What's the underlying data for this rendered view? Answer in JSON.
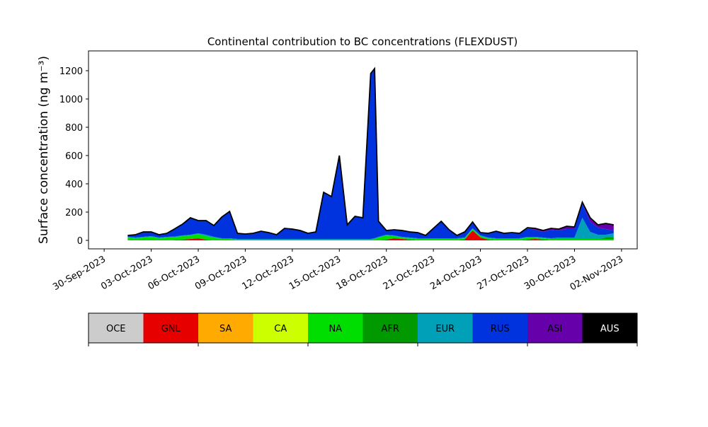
{
  "chart_data": [
    {
      "type": "area",
      "stacked": true,
      "title": "Continental contribution to BC concentrations (FLEXDUST)",
      "ylabel": "Surface concentration (ng m⁻³)",
      "xlabel": "",
      "xlim": [
        "2023-09-29",
        "2023-11-03"
      ],
      "ylim": [
        -60,
        1340
      ],
      "yticks": [
        0,
        200,
        400,
        600,
        800,
        1000,
        1200
      ],
      "xticks": [
        "2023-09-30",
        "2023-10-03",
        "2023-10-06",
        "2023-10-09",
        "2023-10-12",
        "2023-10-15",
        "2023-10-18",
        "2023-10-21",
        "2023-10-24",
        "2023-10-27",
        "2023-10-30",
        "2023-11-02"
      ],
      "xtick_labels": [
        "30-Sep-2023",
        "03-Oct-2023",
        "06-Oct-2023",
        "09-Oct-2023",
        "12-Oct-2023",
        "15-Oct-2023",
        "18-Oct-2023",
        "21-Oct-2023",
        "24-Oct-2023",
        "27-Oct-2023",
        "30-Oct-2023",
        "02-Nov-2023"
      ],
      "grid": false,
      "x": [
        "2023-10-01 12:00",
        "2023-10-02 00:00",
        "2023-10-02 12:00",
        "2023-10-03 00:00",
        "2023-10-03 12:00",
        "2023-10-04 00:00",
        "2023-10-04 12:00",
        "2023-10-05 00:00",
        "2023-10-05 12:00",
        "2023-10-06 00:00",
        "2023-10-06 12:00",
        "2023-10-07 00:00",
        "2023-10-07 12:00",
        "2023-10-08 00:00",
        "2023-10-08 12:00",
        "2023-10-09 00:00",
        "2023-10-09 12:00",
        "2023-10-10 00:00",
        "2023-10-10 12:00",
        "2023-10-11 00:00",
        "2023-10-11 12:00",
        "2023-10-12 00:00",
        "2023-10-12 12:00",
        "2023-10-13 00:00",
        "2023-10-13 12:00",
        "2023-10-14 00:00",
        "2023-10-14 12:00",
        "2023-10-15 00:00",
        "2023-10-15 12:00",
        "2023-10-16 00:00",
        "2023-10-16 12:00",
        "2023-10-17 00:00",
        "2023-10-17 06:00",
        "2023-10-17 12:00",
        "2023-10-18 00:00",
        "2023-10-18 12:00",
        "2023-10-19 00:00",
        "2023-10-19 12:00",
        "2023-10-20 00:00",
        "2023-10-20 12:00",
        "2023-10-21 00:00",
        "2023-10-21 12:00",
        "2023-10-22 00:00",
        "2023-10-22 12:00",
        "2023-10-23 00:00",
        "2023-10-23 12:00",
        "2023-10-24 00:00",
        "2023-10-24 12:00",
        "2023-10-25 00:00",
        "2023-10-25 12:00",
        "2023-10-26 00:00",
        "2023-10-26 12:00",
        "2023-10-27 00:00",
        "2023-10-27 12:00",
        "2023-10-28 00:00",
        "2023-10-28 12:00",
        "2023-10-29 00:00",
        "2023-10-29 12:00",
        "2023-10-30 00:00",
        "2023-10-30 12:00",
        "2023-10-31 00:00",
        "2023-10-31 12:00",
        "2023-11-01 00:00",
        "2023-11-01 12:00"
      ],
      "series": [
        {
          "name": "OCE",
          "color": "#cccccc",
          "values": [
            0,
            0,
            0,
            0,
            0,
            0,
            0,
            0,
            0,
            0,
            0,
            0,
            0,
            0,
            0,
            0,
            0,
            0,
            0,
            0,
            0,
            0,
            0,
            0,
            0,
            0,
            0,
            0,
            0,
            0,
            0,
            0,
            0,
            0,
            0,
            0,
            0,
            0,
            0,
            0,
            0,
            0,
            0,
            0,
            0,
            0,
            0,
            0,
            0,
            0,
            0,
            0,
            0,
            0,
            0,
            0,
            0,
            0,
            0,
            0,
            0,
            0,
            0,
            0
          ]
        },
        {
          "name": "GNL",
          "color": "#e60000",
          "values": [
            0,
            0,
            0,
            0,
            0,
            0,
            2,
            5,
            10,
            15,
            5,
            0,
            0,
            0,
            0,
            0,
            0,
            0,
            0,
            0,
            0,
            0,
            0,
            0,
            0,
            0,
            0,
            0,
            0,
            0,
            0,
            0,
            0,
            0,
            5,
            15,
            10,
            5,
            0,
            0,
            0,
            0,
            0,
            0,
            5,
            70,
            20,
            5,
            0,
            0,
            0,
            0,
            5,
            10,
            5,
            0,
            0,
            0,
            0,
            0,
            0,
            0,
            0,
            0
          ]
        },
        {
          "name": "SA",
          "color": "#ffaa00",
          "values": [
            0,
            0,
            0,
            0,
            0,
            0,
            0,
            0,
            0,
            0,
            0,
            0,
            0,
            0,
            0,
            0,
            0,
            0,
            0,
            0,
            0,
            0,
            0,
            0,
            0,
            0,
            0,
            0,
            0,
            0,
            0,
            0,
            0,
            0,
            0,
            0,
            0,
            0,
            0,
            0,
            0,
            0,
            0,
            0,
            0,
            0,
            0,
            0,
            0,
            0,
            0,
            0,
            0,
            0,
            0,
            0,
            0,
            0,
            0,
            0,
            0,
            0,
            0,
            0
          ]
        },
        {
          "name": "CA",
          "color": "#ccff00",
          "values": [
            0,
            0,
            0,
            0,
            0,
            0,
            0,
            0,
            0,
            0,
            0,
            0,
            0,
            0,
            0,
            0,
            0,
            0,
            0,
            0,
            0,
            0,
            0,
            0,
            0,
            0,
            0,
            0,
            0,
            0,
            0,
            0,
            0,
            0,
            0,
            0,
            0,
            0,
            0,
            0,
            0,
            0,
            0,
            0,
            0,
            0,
            0,
            0,
            0,
            0,
            0,
            0,
            0,
            0,
            0,
            0,
            0,
            0,
            0,
            0,
            0,
            0,
            0,
            0
          ]
        },
        {
          "name": "NA",
          "color": "#00dd00",
          "values": [
            20,
            15,
            20,
            25,
            15,
            20,
            20,
            25,
            25,
            30,
            25,
            20,
            10,
            10,
            5,
            5,
            5,
            5,
            5,
            5,
            5,
            5,
            5,
            5,
            5,
            5,
            5,
            5,
            5,
            5,
            5,
            5,
            10,
            20,
            30,
            15,
            10,
            10,
            10,
            10,
            10,
            10,
            10,
            10,
            10,
            10,
            10,
            10,
            10,
            10,
            10,
            10,
            15,
            10,
            10,
            10,
            10,
            10,
            10,
            10,
            10,
            10,
            10,
            10
          ]
        },
        {
          "name": "AFR",
          "color": "#009900",
          "values": [
            0,
            0,
            0,
            0,
            0,
            0,
            0,
            0,
            0,
            0,
            0,
            0,
            0,
            0,
            0,
            0,
            0,
            0,
            0,
            0,
            0,
            0,
            0,
            0,
            0,
            0,
            0,
            0,
            0,
            0,
            0,
            0,
            0,
            0,
            0,
            0,
            0,
            0,
            0,
            0,
            0,
            0,
            0,
            0,
            0,
            0,
            0,
            0,
            0,
            0,
            0,
            0,
            0,
            0,
            0,
            0,
            0,
            0,
            0,
            0,
            0,
            0,
            10,
            10
          ]
        },
        {
          "name": "EUR",
          "color": "#00a0b8",
          "values": [
            5,
            5,
            5,
            5,
            5,
            5,
            5,
            5,
            5,
            5,
            10,
            5,
            5,
            5,
            5,
            5,
            5,
            5,
            5,
            5,
            5,
            5,
            5,
            5,
            5,
            5,
            5,
            5,
            5,
            5,
            5,
            5,
            5,
            5,
            5,
            5,
            5,
            5,
            5,
            5,
            5,
            5,
            5,
            5,
            5,
            5,
            5,
            5,
            5,
            5,
            5,
            5,
            5,
            5,
            5,
            5,
            10,
            10,
            10,
            150,
            50,
            30,
            20,
            30
          ]
        },
        {
          "name": "RUS",
          "color": "#0033dd",
          "values": [
            10,
            20,
            35,
            30,
            20,
            25,
            55,
            80,
            120,
            90,
            100,
            80,
            150,
            190,
            40,
            35,
            40,
            55,
            45,
            30,
            75,
            70,
            60,
            40,
            50,
            330,
            300,
            590,
            100,
            160,
            150,
            1170,
            1200,
            110,
            30,
            40,
            45,
            40,
            40,
            20,
            70,
            120,
            60,
            20,
            40,
            45,
            20,
            30,
            50,
            35,
            40,
            35,
            60,
            50,
            40,
            60,
            50,
            60,
            60,
            100,
            70,
            50,
            40,
            20
          ]
        },
        {
          "name": "ASI",
          "color": "#6600aa",
          "values": [
            0,
            0,
            0,
            0,
            0,
            0,
            0,
            0,
            0,
            0,
            0,
            0,
            0,
            0,
            0,
            0,
            0,
            0,
            0,
            0,
            0,
            0,
            0,
            0,
            0,
            0,
            0,
            0,
            0,
            0,
            0,
            0,
            0,
            0,
            0,
            0,
            0,
            0,
            0,
            0,
            0,
            0,
            0,
            0,
            0,
            0,
            0,
            0,
            0,
            0,
            0,
            0,
            5,
            10,
            10,
            10,
            10,
            20,
            15,
            10,
            30,
            20,
            40,
            40
          ]
        },
        {
          "name": "AUS",
          "color": "#000000",
          "values": [
            0,
            0,
            0,
            0,
            0,
            0,
            0,
            0,
            0,
            0,
            0,
            0,
            0,
            0,
            0,
            0,
            0,
            0,
            0,
            0,
            0,
            0,
            0,
            0,
            0,
            0,
            0,
            0,
            0,
            0,
            0,
            0,
            0,
            0,
            0,
            0,
            0,
            0,
            0,
            0,
            0,
            0,
            0,
            0,
            0,
            0,
            0,
            0,
            0,
            0,
            0,
            0,
            0,
            0,
            0,
            0,
            0,
            0,
            0,
            0,
            0,
            0,
            0,
            0
          ]
        }
      ]
    },
    {
      "type": "legend-colorbar",
      "labels": [
        "OCE",
        "GNL",
        "SA",
        "CA",
        "NA",
        "AFR",
        "EUR",
        "RUS",
        "ASI",
        "AUS"
      ],
      "colors": [
        "#cccccc",
        "#e60000",
        "#ffaa00",
        "#ccff00",
        "#00dd00",
        "#009900",
        "#00a0b8",
        "#0033dd",
        "#6600aa",
        "#000000"
      ],
      "label_colors": [
        "#000000",
        "#000000",
        "#000000",
        "#000000",
        "#000000",
        "#000000",
        "#000000",
        "#000000",
        "#000000",
        "#ffffff"
      ]
    }
  ]
}
